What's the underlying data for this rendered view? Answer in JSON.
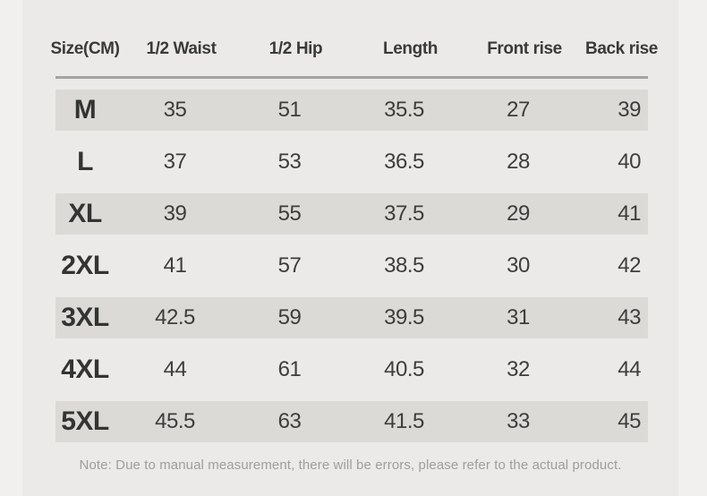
{
  "theme": {
    "bg": "#f1f0ef",
    "panel": "#ebeae8",
    "band": "#dbdad7",
    "divider": "#a3a3a1",
    "header_text": "#3a3a38",
    "size_text": "#333432",
    "value_text": "#3d3d3b",
    "note_text": "#9e9e9c"
  },
  "table": {
    "columns": [
      "Size(CM)",
      "1/2 Waist",
      "1/2 Hip",
      "Length",
      "Front rise",
      "Back rise"
    ],
    "rows": [
      {
        "size": "M",
        "shaded": true,
        "values": [
          "35",
          "51",
          "35.5",
          "27",
          "39"
        ]
      },
      {
        "size": "L",
        "shaded": false,
        "values": [
          "37",
          "53",
          "36.5",
          "28",
          "40"
        ]
      },
      {
        "size": "XL",
        "shaded": true,
        "values": [
          "39",
          "55",
          "37.5",
          "29",
          "41"
        ]
      },
      {
        "size": "2XL",
        "shaded": false,
        "values": [
          "41",
          "57",
          "38.5",
          "30",
          "42"
        ]
      },
      {
        "size": "3XL",
        "shaded": true,
        "values": [
          "42.5",
          "59",
          "39.5",
          "31",
          "43"
        ]
      },
      {
        "size": "4XL",
        "shaded": false,
        "values": [
          "44",
          "61",
          "40.5",
          "32",
          "44"
        ]
      },
      {
        "size": "5XL",
        "shaded": true,
        "values": [
          "45.5",
          "63",
          "41.5",
          "33",
          "45"
        ]
      }
    ]
  },
  "note": {
    "text": "Note: Due to manual measurement, there will be errors, please refer to the actual product."
  },
  "chart_data": {
    "type": "table",
    "columns": [
      "Size(CM)",
      "1/2 Waist",
      "1/2 Hip",
      "Length",
      "Front rise",
      "Back rise"
    ],
    "rows": [
      [
        "M",
        35,
        51,
        35.5,
        27,
        39
      ],
      [
        "L",
        37,
        53,
        36.5,
        28,
        40
      ],
      [
        "XL",
        39,
        55,
        37.5,
        29,
        41
      ],
      [
        "2XL",
        41,
        57,
        38.5,
        30,
        42
      ],
      [
        "3XL",
        42.5,
        59,
        39.5,
        31,
        43
      ],
      [
        "4XL",
        44,
        61,
        40.5,
        32,
        44
      ],
      [
        "5XL",
        45.5,
        63,
        41.5,
        33,
        45
      ]
    ],
    "notes": "Note: Due to manual measurement, there will be errors, please refer to the actual product.",
    "layout": {
      "striped_rows": [
        "M",
        "XL",
        "3XL",
        "5XL"
      ],
      "header_divider": true,
      "grid": false
    }
  }
}
